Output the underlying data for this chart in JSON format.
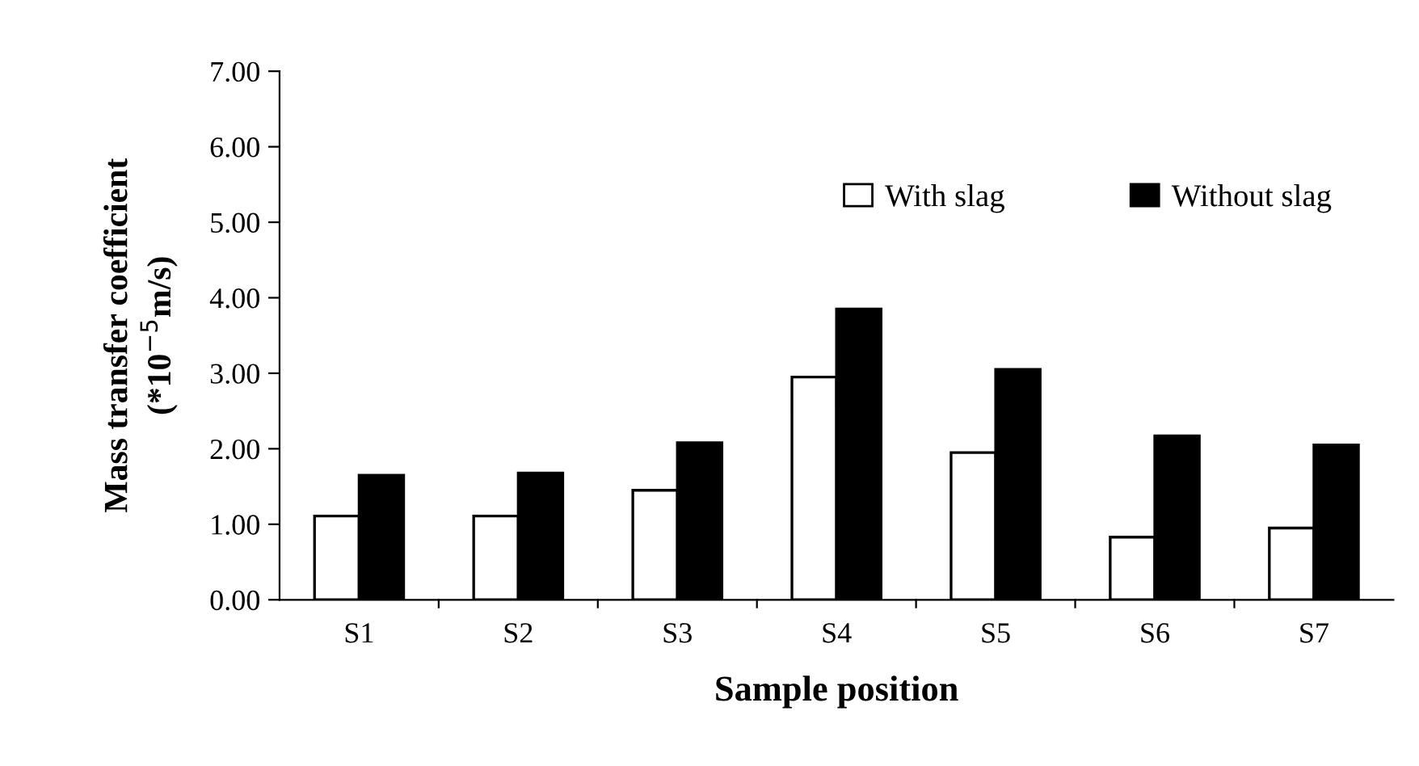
{
  "chart_data": {
    "type": "bar",
    "xlabel": "Sample position",
    "ylabel": "Mass transfer coefficient\n(*10$^{−5}$m/s)",
    "categories": [
      "S1",
      "S2",
      "S3",
      "S4",
      "S5",
      "S6",
      "S7"
    ],
    "series": [
      {
        "name": "With slag",
        "color": "#ffffff",
        "values": [
          1.11,
          1.11,
          1.45,
          2.95,
          1.95,
          0.83,
          0.95
        ]
      },
      {
        "name": "Without slag",
        "color": "#000000",
        "values": [
          1.65,
          1.68,
          2.08,
          3.85,
          3.05,
          2.17,
          2.05
        ]
      }
    ],
    "ylim": [
      0,
      7
    ],
    "yticks": [
      {
        "value": 0,
        "label": "0.00"
      },
      {
        "value": 1,
        "label": "1.00"
      },
      {
        "value": 2,
        "label": "2.00"
      },
      {
        "value": 3,
        "label": "3.00"
      },
      {
        "value": 4,
        "label": "4.00"
      },
      {
        "value": 5,
        "label": "5.00"
      },
      {
        "value": 6,
        "label": "6.00"
      },
      {
        "value": 7,
        "label": "7.00"
      }
    ],
    "legend": "top right",
    "grid": false
  }
}
